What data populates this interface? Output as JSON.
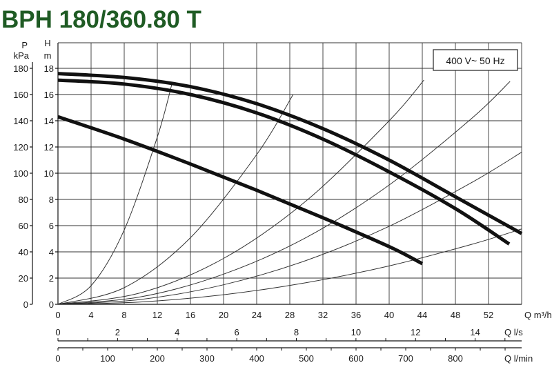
{
  "chart_data": {
    "type": "line",
    "title": "BPH 180/360.80 T",
    "legend": "400 V~ 50 Hz",
    "legend_position": "top-right",
    "grid": true,
    "axes": {
      "head_m": {
        "label_top": "H",
        "label_bottom": "m",
        "range": [
          0,
          18
        ],
        "ticks": [
          "0",
          "2",
          "4",
          "6",
          "8",
          "10",
          "12",
          "14",
          "16",
          "18"
        ]
      },
      "pressure_kpa": {
        "label_top": "P",
        "label_bottom": "kPa",
        "range": [
          0,
          180
        ],
        "ticks": [
          "0",
          "20",
          "40",
          "60",
          "80",
          "100",
          "120",
          "140",
          "160",
          "180"
        ]
      },
      "flow_m3h": {
        "label": "Q m³/h",
        "range": [
          0,
          56
        ],
        "ticks": [
          "0",
          "4",
          "8",
          "12",
          "16",
          "20",
          "24",
          "28",
          "32",
          "36",
          "40",
          "44",
          "48",
          "52"
        ]
      },
      "flow_ls": {
        "label": "Q l/s",
        "range": [
          0,
          15.56
        ],
        "ticks": [
          "0",
          "2",
          "4",
          "6",
          "8",
          "10",
          "12",
          "14"
        ]
      },
      "flow_lmin": {
        "label": "Q l/min",
        "range": [
          0,
          933.3
        ],
        "ticks": [
          "0",
          "100",
          "200",
          "300",
          "400",
          "500",
          "600",
          "700",
          "800"
        ]
      }
    },
    "series": [
      {
        "x": [
          0,
          8,
          16,
          24,
          32,
          40,
          48,
          56
        ],
        "y": [
          17.6,
          17.3,
          16.6,
          15.3,
          13.4,
          11.0,
          8.2,
          5.4
        ]
      },
      {
        "x": [
          0,
          8,
          16,
          24,
          32,
          40,
          48,
          54.5
        ],
        "y": [
          17.1,
          16.8,
          16.0,
          14.6,
          12.6,
          10.1,
          7.3,
          4.6
        ]
      },
      {
        "x": [
          0,
          8,
          16,
          24,
          32,
          40,
          44
        ],
        "y": [
          14.3,
          12.6,
          10.7,
          8.7,
          6.6,
          4.4,
          3.1
        ]
      }
    ],
    "system_curves": [
      {
        "x": [
          0,
          4,
          8,
          12,
          13.8
        ],
        "y": [
          0,
          1.42,
          5.67,
          12.76,
          16.9
        ]
      },
      {
        "x": [
          0,
          8,
          16,
          24,
          28.4
        ],
        "y": [
          0,
          1.27,
          5.08,
          11.42,
          16.0
        ]
      },
      {
        "x": [
          0,
          10,
          20,
          30,
          40,
          44.2
        ],
        "y": [
          0,
          0.88,
          3.5,
          7.9,
          14.0,
          17.1
        ]
      },
      {
        "x": [
          0,
          10,
          20,
          30,
          40,
          50,
          54.6
        ],
        "y": [
          0,
          0.57,
          2.3,
          5.1,
          9.1,
          14.2,
          17.0
        ]
      },
      {
        "x": [
          0,
          10,
          20,
          30,
          40,
          50,
          56
        ],
        "y": [
          0,
          0.37,
          1.49,
          3.35,
          5.95,
          9.3,
          11.6
        ]
      },
      {
        "x": [
          0,
          10,
          20,
          30,
          40,
          50,
          56
        ],
        "y": [
          0,
          0.18,
          0.73,
          1.65,
          2.93,
          4.58,
          5.75
        ]
      }
    ]
  }
}
